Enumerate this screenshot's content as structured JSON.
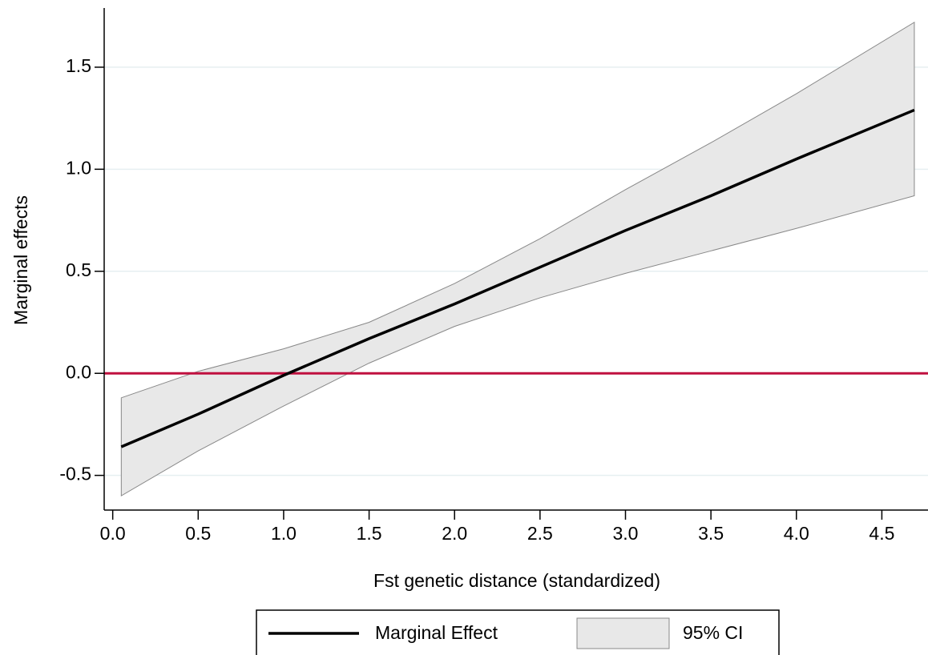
{
  "chart_data": {
    "type": "line-band",
    "x_label": "Fst genetic distance (standardized)",
    "y_label": "Marginal effects",
    "x": [
      0.05,
      0.5,
      1.0,
      1.5,
      2.0,
      2.5,
      3.0,
      3.5,
      4.0,
      4.69
    ],
    "series": [
      {
        "name": "Marginal Effect",
        "color": "#000000",
        "values": [
          -0.36,
          -0.2,
          -0.01,
          0.17,
          0.34,
          0.52,
          0.7,
          0.87,
          1.05,
          1.29
        ]
      },
      {
        "name": "95% CI",
        "color": "#e8e8e8",
        "lower": [
          -0.6,
          -0.38,
          -0.16,
          0.05,
          0.23,
          0.37,
          0.49,
          0.6,
          0.71,
          0.87
        ],
        "upper": [
          -0.12,
          0.01,
          0.12,
          0.25,
          0.44,
          0.66,
          0.9,
          1.13,
          1.37,
          1.72
        ]
      }
    ],
    "reference_line": {
      "y": 0,
      "color": "#c0103f"
    },
    "xlim": [
      -0.05,
      4.77
    ],
    "ylim": [
      -0.67,
      1.79
    ],
    "xticks": [
      {
        "value": 0,
        "label": "0.0"
      },
      0.5,
      {
        "value": 1,
        "label": "1.0"
      },
      1.5,
      {
        "value": 2,
        "label": "2.0"
      },
      2.5,
      {
        "value": 3,
        "label": "3.0"
      },
      3.5,
      {
        "value": 4,
        "label": "4.0"
      },
      4.5
    ],
    "yticks": [
      -0.5,
      {
        "value": 0,
        "label": "0.0"
      },
      0.5,
      {
        "value": 1,
        "label": "1.0"
      },
      1.5
    ],
    "grid": true,
    "legend": "bottom"
  }
}
